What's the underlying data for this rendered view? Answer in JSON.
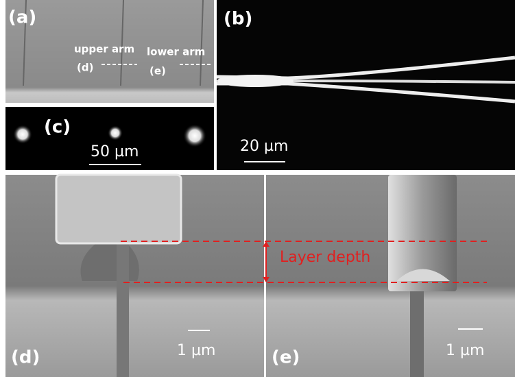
{
  "panels": [
    {
      "label": "(a)",
      "annotations": [
        "upper arm",
        "(d)",
        "lower arm",
        "(e)"
      ]
    },
    {
      "label": "(b)",
      "scale_bar": "20 µm"
    },
    {
      "label": "(c)",
      "scale_bar": "50 µm"
    },
    {
      "label": "(d)",
      "scale_bar": "1 µm",
      "annotation": "Layer depth"
    },
    {
      "label": "(e)",
      "scale_bar": "1 µm"
    }
  ]
}
